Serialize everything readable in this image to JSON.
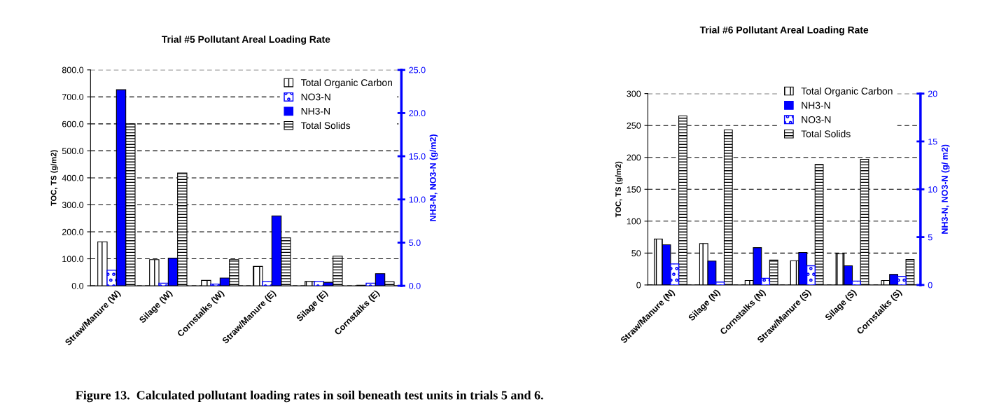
{
  "chart_data": [
    {
      "type": "bar",
      "title": "Trial #5 Pollutant Areal Loading Rate",
      "ylabel": "TOC, TS (g/m2)",
      "y2label": "NH3-N, NO3-N (g/m2)",
      "categories": [
        "Straw/Manure (W)",
        "Silage (W)",
        "Cornstalks (W)",
        "Straw/Manure (E)",
        "Silage (E)",
        "Cornstalks (E)"
      ],
      "series": [
        {
          "name": "Total Organic Carbon",
          "color": "#000000",
          "values": [
            163,
            97,
            20,
            72,
            16,
            2
          ]
        },
        {
          "name": "NO3-N",
          "color": "#0000ff",
          "axis": "y2",
          "values": [
            1.8,
            0.3,
            0.2,
            0.5,
            0.5,
            0.3
          ]
        },
        {
          "name": "NH3-N",
          "color": "#0000ff",
          "axis": "y2",
          "values": [
            22.7,
            3.2,
            0.9,
            8.1,
            0.4,
            1.4
          ]
        },
        {
          "name": "Total Solids",
          "color": "#000000",
          "values": [
            600,
            418,
            97,
            178,
            110,
            15
          ]
        }
      ],
      "ylim": [
        0,
        800
      ],
      "yticks": [
        {
          "value": 0,
          "label": "0.0"
        },
        {
          "value": 100,
          "label": "100.0"
        },
        {
          "value": 200,
          "label": "200.0"
        },
        {
          "value": 300,
          "label": "300.0"
        },
        {
          "value": 400,
          "label": "400.0"
        },
        {
          "value": 500,
          "label": "500.0"
        },
        {
          "value": 600,
          "label": "600.0"
        },
        {
          "value": 700,
          "label": "700.0"
        },
        {
          "value": 800,
          "label": "800.0"
        }
      ],
      "y2lim": [
        0,
        25
      ],
      "y2ticks": [
        {
          "value": 0,
          "label": "0.0"
        },
        {
          "value": 5,
          "label": "5.0"
        },
        {
          "value": 10,
          "label": "10.0"
        },
        {
          "value": 15,
          "label": "15.0"
        },
        {
          "value": 20,
          "label": "20.0"
        },
        {
          "value": 25,
          "label": "25.0"
        }
      ],
      "grid": "y",
      "legend": "top right",
      "annotations": [
        "Figure 13.  Calculated pollutant loading rates in soil beneath test units in trials 5 and 6."
      ]
    },
    {
      "type": "bar",
      "title": "Trial #6 Pollutant Areal Loading Rate",
      "ylabel": "TOC, TS (g/m2)",
      "y2label": "NH3-N, NO3-N (g/ m2)",
      "categories": [
        "Straw/Manure (N)",
        "Silage (N)",
        "Cornstalks (N)",
        "Straw/Manure (S)",
        "Silage (S)",
        "Cornstalks (S)"
      ],
      "series": [
        {
          "name": "Total Organic Carbon",
          "color": "#000000",
          "values": [
            72,
            65,
            7,
            38,
            49,
            7
          ]
        },
        {
          "name": "NH3-N",
          "color": "#0000ff",
          "axis": "y2",
          "values": [
            4.2,
            2.5,
            3.9,
            3.4,
            2.0,
            1.1
          ]
        },
        {
          "name": "NO3-N",
          "color": "#0000ff",
          "axis": "y2",
          "values": [
            2.2,
            0.3,
            0.7,
            2.0,
            0.4,
            0.9
          ]
        },
        {
          "name": "Total Solids",
          "color": "#000000",
          "values": [
            265,
            243,
            39,
            189,
            197,
            40
          ]
        }
      ],
      "ylim": [
        0,
        300
      ],
      "yticks": [
        0,
        50,
        100,
        150,
        200,
        250,
        300
      ],
      "y2lim": [
        0,
        20
      ],
      "y2ticks": [
        0,
        5,
        10,
        15,
        20
      ],
      "grid": "y",
      "legend": "top"
    }
  ]
}
